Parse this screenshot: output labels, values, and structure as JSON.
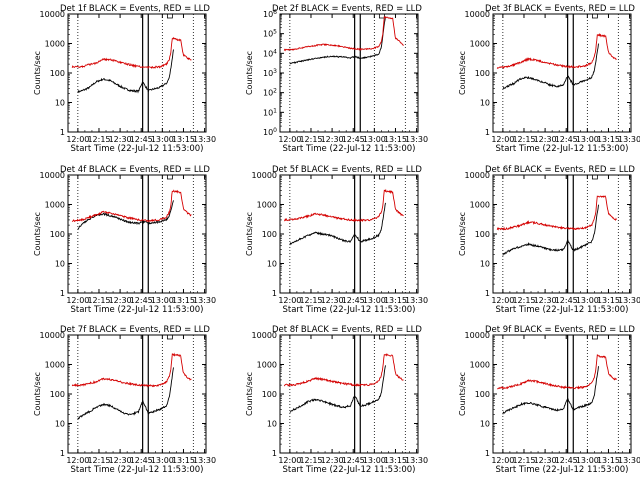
{
  "figure": {
    "xlabel": "Start Time (22-Jul-12 11:53:00)",
    "ylabel": "Counts/sec",
    "colors": {
      "events": "#000000",
      "lld": "#d40000",
      "axes": "#000000"
    }
  },
  "chart_data": [
    {
      "type": "line",
      "title": "Det 1f  BLACK = Events, RED = LLD",
      "x_ticks": [
        "12:00",
        "12:15",
        "12:30",
        "12:45",
        "13:00",
        "13:15",
        "13:30"
      ],
      "y_ticks": [
        "1",
        "10",
        "100",
        "1000",
        "10000"
      ],
      "y_scale": "log",
      "ylim": [
        1,
        10000
      ],
      "x_range_min": [
        0,
        98
      ],
      "vlines_solid_min": [
        53,
        57
      ],
      "vlines_dotted_min": [
        7,
        67,
        89
      ],
      "series": [
        {
          "name": "Events",
          "x_min": [
            7,
            10,
            15,
            20,
            25,
            30,
            35,
            40,
            45,
            50,
            53,
            57,
            60,
            65,
            70,
            72,
            74,
            75
          ],
          "values": [
            23,
            25,
            32,
            50,
            62,
            55,
            40,
            30,
            25,
            24,
            50,
            25,
            28,
            32,
            45,
            70,
            300,
            700
          ]
        },
        {
          "name": "LLD",
          "x_min": [
            3,
            10,
            20,
            25,
            30,
            40,
            50,
            57,
            65,
            70,
            72,
            73,
            74,
            76,
            80,
            82,
            85,
            88
          ],
          "values": [
            160,
            165,
            220,
            300,
            280,
            210,
            165,
            155,
            160,
            200,
            300,
            500,
            1500,
            1400,
            1300,
            400,
            320,
            260
          ]
        }
      ]
    },
    {
      "type": "line",
      "title": "Det 2f  BLACK = Events, RED = LLD",
      "x_ticks": [
        "12:00",
        "12:15",
        "12:30",
        "12:45",
        "13:00",
        "13:15",
        "13:30"
      ],
      "y_ticks": [
        "10^0",
        "10^1",
        "10^2",
        "10^3",
        "10^4",
        "10^5",
        "10^6"
      ],
      "y_scale": "log",
      "ylim": [
        1,
        1000000
      ],
      "x_range_min": [
        0,
        98
      ],
      "vlines_solid_min": [
        53,
        57
      ],
      "vlines_dotted_min": [
        7,
        67,
        89
      ],
      "series": [
        {
          "name": "Events",
          "x_min": [
            7,
            15,
            25,
            35,
            45,
            50,
            53,
            57,
            60,
            65,
            70,
            72,
            74,
            75
          ],
          "values": [
            3000,
            4000,
            5500,
            7000,
            6500,
            5800,
            7000,
            5500,
            6000,
            7000,
            9000,
            20000,
            300000,
            800000
          ]
        },
        {
          "name": "LLD",
          "x_min": [
            3,
            10,
            20,
            30,
            40,
            50,
            57,
            65,
            70,
            72,
            73,
            74,
            76,
            80,
            82,
            85,
            88
          ],
          "values": [
            15000,
            16000,
            22000,
            28000,
            25000,
            18000,
            16000,
            17000,
            22000,
            40000,
            100000,
            700000,
            650000,
            600000,
            60000,
            40000,
            25000
          ]
        }
      ]
    },
    {
      "type": "line",
      "title": "Det 3f  BLACK = Events, RED = LLD",
      "x_ticks": [
        "12:00",
        "12:15",
        "12:30",
        "12:45",
        "13:00",
        "13:15",
        "13:30"
      ],
      "y_ticks": [
        "1",
        "10",
        "100",
        "1000",
        "10000"
      ],
      "y_scale": "log",
      "ylim": [
        1,
        10000
      ],
      "x_range_min": [
        0,
        98
      ],
      "vlines_solid_min": [
        53,
        57
      ],
      "vlines_dotted_min": [
        7,
        67,
        89
      ],
      "series": [
        {
          "name": "Events",
          "x_min": [
            7,
            10,
            15,
            20,
            25,
            30,
            35,
            40,
            45,
            50,
            53,
            57,
            60,
            65,
            70,
            72,
            74,
            75
          ],
          "values": [
            30,
            35,
            45,
            65,
            70,
            60,
            50,
            40,
            35,
            40,
            80,
            40,
            45,
            55,
            70,
            120,
            500,
            1000
          ]
        },
        {
          "name": "LLD",
          "x_min": [
            3,
            10,
            20,
            25,
            30,
            40,
            50,
            57,
            65,
            70,
            72,
            73,
            74,
            76,
            80,
            82,
            85,
            88
          ],
          "values": [
            150,
            160,
            230,
            300,
            280,
            210,
            170,
            160,
            170,
            220,
            350,
            600,
            2000,
            1900,
            1800,
            500,
            350,
            300
          ]
        }
      ]
    },
    {
      "type": "line",
      "title": "Det 4f  BLACK = Events, RED = LLD",
      "x_ticks": [
        "12:00",
        "12:15",
        "12:30",
        "12:45",
        "13:00",
        "13:15",
        "13:30"
      ],
      "y_ticks": [
        "1",
        "10",
        "100",
        "1000",
        "10000"
      ],
      "y_scale": "log",
      "ylim": [
        1,
        10000
      ],
      "x_range_min": [
        0,
        98
      ],
      "vlines_solid_min": [
        53,
        57
      ],
      "vlines_dotted_min": [
        7,
        67,
        89
      ],
      "series": [
        {
          "name": "Events",
          "x_min": [
            7,
            10,
            15,
            20,
            25,
            30,
            35,
            40,
            45,
            50,
            53,
            57,
            60,
            65,
            70,
            72,
            74,
            75
          ],
          "values": [
            150,
            220,
            320,
            430,
            480,
            420,
            350,
            280,
            240,
            230,
            260,
            230,
            240,
            260,
            310,
            420,
            900,
            1500
          ]
        },
        {
          "name": "LLD",
          "x_min": [
            3,
            10,
            20,
            25,
            30,
            40,
            50,
            57,
            65,
            70,
            72,
            73,
            74,
            76,
            80,
            82,
            85,
            88
          ],
          "values": [
            280,
            300,
            450,
            550,
            520,
            380,
            300,
            280,
            300,
            380,
            550,
            900,
            3000,
            2800,
            2600,
            700,
            500,
            420
          ]
        }
      ]
    },
    {
      "type": "line",
      "title": "Det 5f  BLACK = Events, RED = LLD",
      "x_ticks": [
        "12:00",
        "12:15",
        "12:30",
        "12:45",
        "13:00",
        "13:15",
        "13:30"
      ],
      "y_ticks": [
        "1",
        "10",
        "100",
        "1000",
        "10000"
      ],
      "y_scale": "log",
      "ylim": [
        1,
        10000
      ],
      "x_range_min": [
        0,
        98
      ],
      "vlines_solid_min": [
        53,
        57
      ],
      "vlines_dotted_min": [
        7,
        67,
        89
      ],
      "series": [
        {
          "name": "Events",
          "x_min": [
            7,
            10,
            15,
            20,
            25,
            30,
            35,
            40,
            45,
            50,
            53,
            57,
            60,
            65,
            70,
            72,
            74,
            75
          ],
          "values": [
            45,
            55,
            70,
            90,
            110,
            100,
            90,
            75,
            60,
            55,
            100,
            55,
            60,
            70,
            90,
            150,
            600,
            1200
          ]
        },
        {
          "name": "LLD",
          "x_min": [
            3,
            10,
            20,
            25,
            30,
            40,
            50,
            57,
            65,
            70,
            72,
            73,
            74,
            76,
            80,
            82,
            85,
            88
          ],
          "values": [
            300,
            310,
            400,
            480,
            450,
            350,
            300,
            290,
            300,
            380,
            550,
            900,
            3000,
            2800,
            2600,
            700,
            500,
            420
          ]
        }
      ]
    },
    {
      "type": "line",
      "title": "Det 6f  BLACK = Events, RED = LLD",
      "x_ticks": [
        "12:00",
        "12:15",
        "12:30",
        "12:45",
        "13:00",
        "13:15",
        "13:30"
      ],
      "y_ticks": [
        "1",
        "10",
        "100",
        "1000",
        "10000"
      ],
      "y_scale": "log",
      "ylim": [
        1,
        10000
      ],
      "x_range_min": [
        0,
        98
      ],
      "vlines_solid_min": [
        53,
        57
      ],
      "vlines_dotted_min": [
        7,
        67,
        89
      ],
      "series": [
        {
          "name": "Events",
          "x_min": [
            7,
            10,
            15,
            20,
            25,
            30,
            35,
            40,
            45,
            50,
            53,
            57,
            60,
            65,
            70,
            72,
            74,
            75
          ],
          "values": [
            20,
            25,
            32,
            38,
            45,
            40,
            35,
            30,
            28,
            30,
            60,
            28,
            32,
            40,
            55,
            100,
            500,
            1000
          ]
        },
        {
          "name": "LLD",
          "x_min": [
            3,
            10,
            20,
            25,
            30,
            40,
            50,
            57,
            65,
            70,
            72,
            73,
            74,
            76,
            80,
            82,
            85,
            88
          ],
          "values": [
            150,
            150,
            200,
            250,
            240,
            190,
            160,
            150,
            160,
            200,
            320,
            550,
            2000,
            1900,
            1800,
            500,
            350,
            300
          ]
        }
      ]
    },
    {
      "type": "line",
      "title": "Det 7f  BLACK = Events, RED = LLD",
      "x_ticks": [
        "12:00",
        "12:15",
        "12:30",
        "12:45",
        "13:00",
        "13:15",
        "13:30"
      ],
      "y_ticks": [
        "1",
        "10",
        "100",
        "1000",
        "10000"
      ],
      "y_scale": "log",
      "ylim": [
        1,
        10000
      ],
      "x_range_min": [
        0,
        98
      ],
      "vlines_solid_min": [
        53,
        57
      ],
      "vlines_dotted_min": [
        7,
        67,
        89
      ],
      "series": [
        {
          "name": "Events",
          "x_min": [
            7,
            10,
            15,
            20,
            25,
            30,
            35,
            40,
            45,
            50,
            53,
            57,
            60,
            65,
            70,
            72,
            74,
            75
          ],
          "values": [
            15,
            18,
            25,
            35,
            45,
            40,
            30,
            22,
            20,
            25,
            60,
            22,
            25,
            30,
            40,
            80,
            400,
            900
          ]
        },
        {
          "name": "LLD",
          "x_min": [
            3,
            10,
            20,
            25,
            30,
            40,
            50,
            57,
            65,
            70,
            72,
            73,
            74,
            76,
            80,
            82,
            85,
            88
          ],
          "values": [
            200,
            200,
            260,
            330,
            310,
            240,
            200,
            190,
            200,
            260,
            400,
            700,
            2200,
            2100,
            2000,
            500,
            350,
            300
          ]
        }
      ]
    },
    {
      "type": "line",
      "title": "Det 8f  BLACK = Events, RED = LLD",
      "x_ticks": [
        "12:00",
        "12:15",
        "12:30",
        "12:45",
        "13:00",
        "13:15",
        "13:30"
      ],
      "y_ticks": [
        "1",
        "10",
        "100",
        "1000",
        "10000"
      ],
      "y_scale": "log",
      "ylim": [
        1,
        10000
      ],
      "x_range_min": [
        0,
        98
      ],
      "vlines_solid_min": [
        53,
        57
      ],
      "vlines_dotted_min": [
        7,
        67,
        89
      ],
      "series": [
        {
          "name": "Events",
          "x_min": [
            7,
            10,
            15,
            20,
            25,
            30,
            35,
            40,
            45,
            50,
            53,
            57,
            60,
            65,
            70,
            72,
            74,
            75
          ],
          "values": [
            25,
            30,
            40,
            55,
            65,
            58,
            48,
            40,
            35,
            40,
            90,
            38,
            42,
            50,
            65,
            110,
            500,
            1000
          ]
        },
        {
          "name": "LLD",
          "x_min": [
            3,
            10,
            20,
            25,
            30,
            40,
            50,
            57,
            65,
            70,
            72,
            73,
            74,
            76,
            80,
            82,
            85,
            88
          ],
          "values": [
            200,
            200,
            270,
            340,
            320,
            250,
            210,
            200,
            210,
            270,
            420,
            750,
            2200,
            2100,
            2000,
            500,
            350,
            300
          ]
        }
      ]
    },
    {
      "type": "line",
      "title": "Det 9f  BLACK = Events, RED = LLD",
      "x_ticks": [
        "12:00",
        "12:15",
        "12:30",
        "12:45",
        "13:00",
        "13:15",
        "13:30"
      ],
      "y_ticks": [
        "1",
        "10",
        "100",
        "1000",
        "10000"
      ],
      "y_scale": "log",
      "ylim": [
        1,
        10000
      ],
      "x_range_min": [
        0,
        98
      ],
      "vlines_solid_min": [
        53,
        57
      ],
      "vlines_dotted_min": [
        7,
        67,
        89
      ],
      "series": [
        {
          "name": "Events",
          "x_min": [
            7,
            10,
            15,
            20,
            25,
            30,
            35,
            40,
            45,
            50,
            53,
            57,
            60,
            65,
            70,
            72,
            74,
            75
          ],
          "values": [
            22,
            27,
            35,
            45,
            50,
            45,
            38,
            32,
            28,
            32,
            70,
            30,
            34,
            40,
            50,
            90,
            450,
            900
          ]
        },
        {
          "name": "LLD",
          "x_min": [
            3,
            10,
            20,
            25,
            30,
            40,
            50,
            57,
            65,
            70,
            72,
            73,
            74,
            76,
            80,
            82,
            85,
            88
          ],
          "values": [
            160,
            165,
            220,
            290,
            270,
            210,
            170,
            160,
            170,
            230,
            380,
            650,
            2000,
            1900,
            1800,
            500,
            350,
            300
          ]
        }
      ]
    }
  ]
}
